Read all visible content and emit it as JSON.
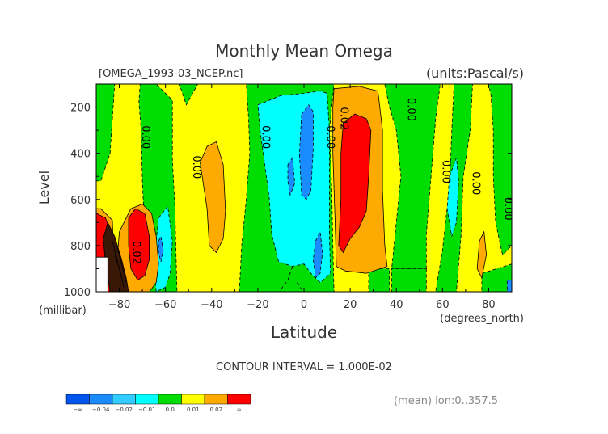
{
  "header": {
    "title": "Monthly Mean Omega",
    "filename": "[OMEGA_1993-03_NCEP.nc]",
    "units": "(units:Pascal/s)"
  },
  "footer": {
    "contour_interval": "CONTOUR INTERVAL = 1.000E-02",
    "mean_info": "(mean) lon:0..357.5"
  },
  "chart_data": {
    "type": "heatmap",
    "title": "Monthly Mean Omega",
    "subtitle": "[OMEGA_1993-03_NCEP.nc]",
    "units": "(units:Pascal/s)",
    "xlabel": "Latitude",
    "xunit": "(degrees_north)",
    "ylabel": "Level",
    "yunit": "(millibar)",
    "xlim": [
      -90,
      90
    ],
    "ylim": [
      1000,
      100
    ],
    "x_ticks": [
      -80,
      -60,
      -40,
      -20,
      0,
      20,
      40,
      60,
      80
    ],
    "x_tick_labels": [
      "−80",
      "−60",
      "−40",
      "−20",
      "0",
      "20",
      "40",
      "60",
      "80"
    ],
    "y_ticks": [
      200,
      400,
      600,
      800,
      1000
    ],
    "y_tick_labels": [
      "200",
      "400",
      "600",
      "800",
      "1000"
    ],
    "contour_interval": 0.01,
    "colorbar": {
      "bins": [
        {
          "label": "−∞",
          "color": "#0055ee"
        },
        {
          "label": "−0.04",
          "color": "#1a8cff"
        },
        {
          "label": "−0.02",
          "color": "#33ccff"
        },
        {
          "label": "−0.01",
          "color": "#00ffff"
        },
        {
          "label": "0.0",
          "color": "#00dd00"
        },
        {
          "label": "0.01",
          "color": "#ffff00"
        },
        {
          "label": "0.02",
          "color": "#ffaa00"
        },
        {
          "label": "∞",
          "color": "#ff0000"
        }
      ],
      "edge_labels": [
        "−∞",
        "−0.04",
        "−0.02",
        "−0.01",
        "0.0",
        "0.01",
        "0.02",
        "∞"
      ]
    },
    "contour_labels": [
      {
        "text": "0.00",
        "lat": -70,
        "lev": 330
      },
      {
        "text": "0.00",
        "lat": -48,
        "lev": 460
      },
      {
        "text": "0.00",
        "lat": -18,
        "lev": 330
      },
      {
        "text": "0.00",
        "lat": 10,
        "lev": 330
      },
      {
        "text": "0.02",
        "lat": 16,
        "lev": 250
      },
      {
        "text": "0.00",
        "lat": 45,
        "lev": 210
      },
      {
        "text": "0.00",
        "lat": 60,
        "lev": 480
      },
      {
        "text": "0.00",
        "lat": 73,
        "lev": 530
      },
      {
        "text": "0.00",
        "lat": 87,
        "lev": 640
      },
      {
        "text": "0.02",
        "lat": -74,
        "lev": 830
      }
    ],
    "regions": [
      {
        "value": 0.005,
        "color": "#ffff00",
        "polys": [
          [
            [
              -90,
              100
            ],
            [
              90,
              100
            ],
            [
              90,
              1000
            ],
            [
              -90,
              1000
            ]
          ]
        ]
      },
      {
        "value": -0.005,
        "color": "#00dd00",
        "polys": [
          [
            [
              -90,
              100
            ],
            [
              -82,
              100
            ],
            [
              -83,
              250
            ],
            [
              -84,
              400
            ],
            [
              -88,
              520
            ],
            [
              -90,
              520
            ]
          ],
          [
            [
              -71,
              100
            ],
            [
              -64,
              100
            ],
            [
              -57,
              170
            ],
            [
              -57,
              430
            ],
            [
              -56,
              620
            ],
            [
              -55,
              1000
            ],
            [
              -67,
              1000
            ],
            [
              -69,
              750
            ],
            [
              -70,
              520
            ],
            [
              -70.5,
              300
            ],
            [
              -71.5,
              180
            ]
          ],
          [
            [
              -54,
              100
            ],
            [
              -46,
              100
            ],
            [
              -51,
              190
            ]
          ],
          [
            [
              -25,
              100
            ],
            [
              13,
              100
            ],
            [
              11,
              300
            ],
            [
              12,
              550
            ],
            [
              12.5,
              800
            ],
            [
              13,
              1000
            ],
            [
              -28,
              1000
            ],
            [
              -27,
              800
            ],
            [
              -25,
              600
            ],
            [
              -23.5,
              400
            ],
            [
              -24,
              250
            ]
          ],
          [
            [
              35,
              100
            ],
            [
              59,
              100
            ],
            [
              57,
              250
            ],
            [
              55,
              500
            ],
            [
              53,
              750
            ],
            [
              53,
              900
            ],
            [
              38,
              900
            ],
            [
              40,
              700
            ],
            [
              42,
              500
            ],
            [
              40,
              300
            ],
            [
              37,
              200
            ]
          ],
          [
            [
              53,
              900
            ],
            [
              53,
              1000
            ],
            [
              38,
              1000
            ],
            [
              38,
              900
            ]
          ],
          [
            [
              28,
              900
            ],
            [
              37,
              900
            ],
            [
              37,
              1000
            ],
            [
              28,
              1000
            ]
          ],
          [
            [
              65,
              100
            ],
            [
              73,
              100
            ],
            [
              72,
              300
            ],
            [
              69,
              500
            ],
            [
              68,
              760
            ],
            [
              66,
              1000
            ],
            [
              57,
              1000
            ],
            [
              60,
              820
            ],
            [
              63,
              550
            ],
            [
              64,
              300
            ]
          ],
          [
            [
              80,
              100
            ],
            [
              90,
              100
            ],
            [
              90,
              800
            ],
            [
              86,
              840
            ],
            [
              83,
              700
            ],
            [
              82,
              500
            ],
            [
              82,
              300
            ],
            [
              81,
              150
            ]
          ],
          [
            [
              77,
              920
            ],
            [
              90,
              880
            ],
            [
              90,
              1000
            ],
            [
              77,
              1000
            ]
          ]
        ]
      },
      {
        "value": -0.015,
        "color": "#00ffff",
        "polys": [
          [
            [
              -20,
              190
            ],
            [
              -10,
              150
            ],
            [
              0,
              140
            ],
            [
              7,
              130
            ],
            [
              10,
              140
            ],
            [
              11,
              300
            ],
            [
              11,
              500
            ],
            [
              11,
              750
            ],
            [
              11.5,
              920
            ],
            [
              7,
              960
            ],
            [
              3,
              920
            ],
            [
              0,
              880
            ],
            [
              -5,
              890
            ],
            [
              -11,
              870
            ],
            [
              -14,
              750
            ],
            [
              -15,
              600
            ],
            [
              -17,
              450
            ],
            [
              -19,
              300
            ]
          ],
          [
            [
              -63,
              680
            ],
            [
              -59,
              630
            ],
            [
              -57,
              780
            ],
            [
              -58,
              920
            ],
            [
              -60,
              980
            ],
            [
              -64,
              1000
            ],
            [
              -65,
              900
            ],
            [
              -64,
              780
            ]
          ],
          [
            [
              63,
              500
            ],
            [
              66,
              420
            ],
            [
              67,
              520
            ],
            [
              66,
              700
            ],
            [
              64,
              760
            ],
            [
              62,
              640
            ]
          ]
        ]
      },
      {
        "value": -0.025,
        "color": "#1a8cff",
        "polys": [
          [
            [
              -1,
              230
            ],
            [
              2,
              190
            ],
            [
              4,
              220
            ],
            [
              4,
              380
            ],
            [
              3,
              560
            ],
            [
              1,
              600
            ],
            [
              -1,
              580
            ],
            [
              -2,
              400
            ]
          ],
          [
            [
              -7,
              450
            ],
            [
              -5,
              420
            ],
            [
              -4,
              530
            ],
            [
              -6,
              580
            ],
            [
              -7,
              520
            ]
          ],
          [
            [
              5,
              780
            ],
            [
              7,
              740
            ],
            [
              8,
              830
            ],
            [
              7,
              920
            ],
            [
              5,
              940
            ],
            [
              4,
              860
            ]
          ],
          [
            [
              -63,
              780
            ],
            [
              -62,
              760
            ],
            [
              -61,
              820
            ],
            [
              -62,
              870
            ],
            [
              -63,
              830
            ]
          ]
        ]
      },
      {
        "value": 0.015,
        "color": "#ffaa00",
        "polys": [
          [
            [
              13,
              120
            ],
            [
              24,
              110
            ],
            [
              32,
              130
            ],
            [
              34,
              300
            ],
            [
              34,
              560
            ],
            [
              35,
              800
            ],
            [
              36,
              890
            ],
            [
              27,
              920
            ],
            [
              18,
              910
            ],
            [
              14,
              890
            ],
            [
              13.5,
              700
            ],
            [
              12.5,
              400
            ],
            [
              12.5,
              200
            ]
          ],
          [
            [
              -45,
              440
            ],
            [
              -42,
              370
            ],
            [
              -38,
              350
            ],
            [
              -35,
              450
            ],
            [
              -34,
              650
            ],
            [
              -35,
              770
            ],
            [
              -38,
              830
            ],
            [
              -41,
              800
            ],
            [
              -42,
              640
            ]
          ],
          [
            [
              -80,
              740
            ],
            [
              -75,
              640
            ],
            [
              -70,
              620
            ],
            [
              -66,
              660
            ],
            [
              -64,
              760
            ],
            [
              -63,
              880
            ],
            [
              -64,
              960
            ],
            [
              -67,
              1000
            ],
            [
              -82,
              1000
            ]
          ],
          [
            [
              -88,
              640
            ],
            [
              -83,
              690
            ],
            [
              -82,
              1000
            ],
            [
              -90,
              1000
            ],
            [
              -90,
              640
            ]
          ],
          [
            [
              76,
              780
            ],
            [
              78,
              740
            ],
            [
              79,
              840
            ],
            [
              77,
              940
            ],
            [
              75,
              900
            ]
          ]
        ]
      },
      {
        "value": 0.025,
        "color": "#ff0000",
        "polys": [
          [
            [
              17,
              270
            ],
            [
              22,
              230
            ],
            [
              27,
              250
            ],
            [
              29,
              300
            ],
            [
              28,
              500
            ],
            [
              27,
              650
            ],
            [
              24,
              720
            ],
            [
              20,
              770
            ],
            [
              17,
              830
            ],
            [
              15,
              800
            ],
            [
              16,
              600
            ],
            [
              16,
              400
            ]
          ],
          [
            [
              -76,
              680
            ],
            [
              -73,
              640
            ],
            [
              -69,
              660
            ],
            [
              -67,
              760
            ],
            [
              -67,
              860
            ],
            [
              -69,
              930
            ],
            [
              -72,
              950
            ],
            [
              -75,
              900
            ],
            [
              -76,
              800
            ]
          ],
          [
            [
              -90,
              660
            ],
            [
              -86,
              680
            ],
            [
              -83,
              760
            ],
            [
              -80,
              860
            ],
            [
              -78,
              920
            ],
            [
              -76,
              1000
            ],
            [
              -90,
              1000
            ]
          ]
        ]
      },
      {
        "value": 0.05,
        "color": "#3a1808",
        "polys": [
          [
            [
              -85,
              700
            ],
            [
              -82,
              760
            ],
            [
              -79,
              860
            ],
            [
              -77,
              940
            ],
            [
              -76,
              1000
            ],
            [
              -84,
              1000
            ],
            [
              -86,
              870
            ],
            [
              -87,
              770
            ]
          ]
        ]
      },
      {
        "value": 0.05,
        "color": "#ffffff",
        "polys": [
          [
            [
              -90,
              850
            ],
            [
              -85,
              850
            ],
            [
              -85,
              1000
            ],
            [
              -90,
              1000
            ]
          ]
        ]
      },
      {
        "value": -0.025,
        "color": "#1a8cff",
        "polys": [
          [
            [
              88,
              950
            ],
            [
              90,
              950
            ],
            [
              90,
              1000
            ],
            [
              88,
              1000
            ]
          ]
        ]
      }
    ],
    "contour_lines": [
      {
        "dashed": true,
        "pts": [
          [
            -5,
            890
          ],
          [
            -7,
            950
          ],
          [
            -10,
            990
          ]
        ]
      },
      {
        "dashed": true,
        "pts": [
          [
            -3,
            960
          ],
          [
            -1,
            990
          ]
        ]
      },
      {
        "dashed": false,
        "pts": [
          [
            -82,
            840
          ],
          [
            -80,
            900
          ],
          [
            -78,
            980
          ]
        ]
      },
      {
        "dashed": false,
        "pts": [
          [
            -81,
            800
          ],
          [
            -79,
            880
          ],
          [
            -77,
            960
          ]
        ]
      },
      {
        "dashed": false,
        "pts": [
          [
            -83,
            780
          ],
          [
            -81,
            860
          ],
          [
            -79,
            940
          ]
        ]
      }
    ]
  }
}
